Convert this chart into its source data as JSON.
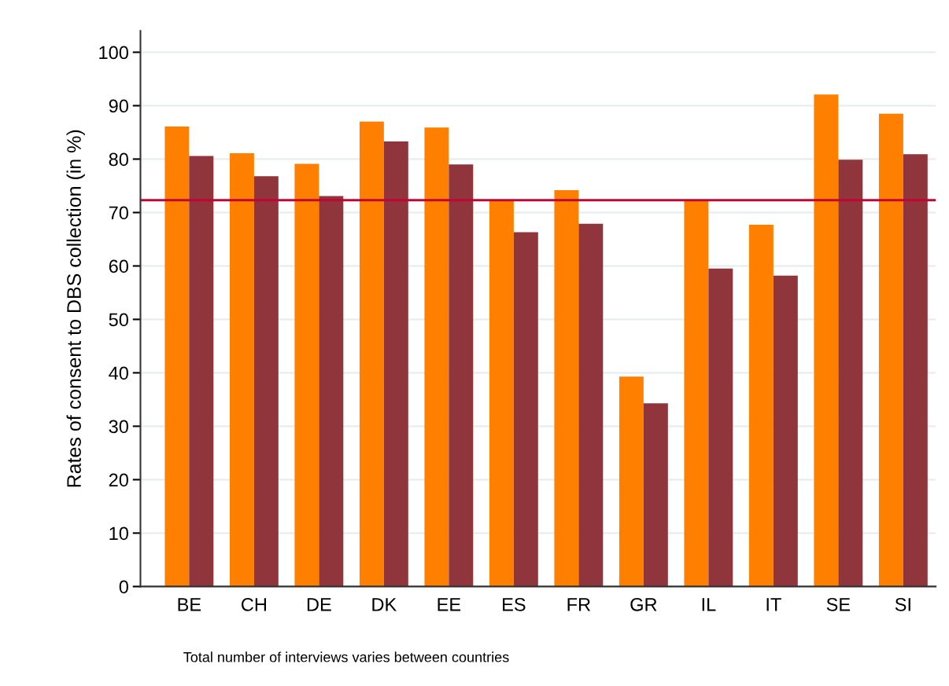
{
  "chart_data": {
    "type": "bar",
    "ylabel": "Rates of consent to DBS collection (in %)",
    "categories": [
      "BE",
      "CH",
      "DE",
      "DK",
      "EE",
      "ES",
      "FR",
      "GR",
      "IL",
      "IT",
      "SE",
      "SI"
    ],
    "series": [
      {
        "color": "#ff7f00",
        "values": [
          86.1,
          81.1,
          79.1,
          87.0,
          85.9,
          72.3,
          74.2,
          39.3,
          72.4,
          67.7,
          92.1,
          88.5
        ]
      },
      {
        "color": "#90353b",
        "values": [
          80.6,
          76.8,
          73.1,
          83.3,
          79.0,
          66.3,
          67.9,
          34.3,
          59.5,
          58.2,
          79.9,
          80.9
        ]
      }
    ],
    "ylim": [
      0,
      104
    ],
    "yticks": [
      0,
      10,
      20,
      30,
      40,
      50,
      60,
      70,
      80,
      90,
      100
    ],
    "grid": "y",
    "ref_lines": [
      {
        "axis": "y",
        "value": 72.3,
        "color": "#c10534"
      }
    ],
    "annotations": [
      "Total number of interviews varies between countries"
    ]
  }
}
